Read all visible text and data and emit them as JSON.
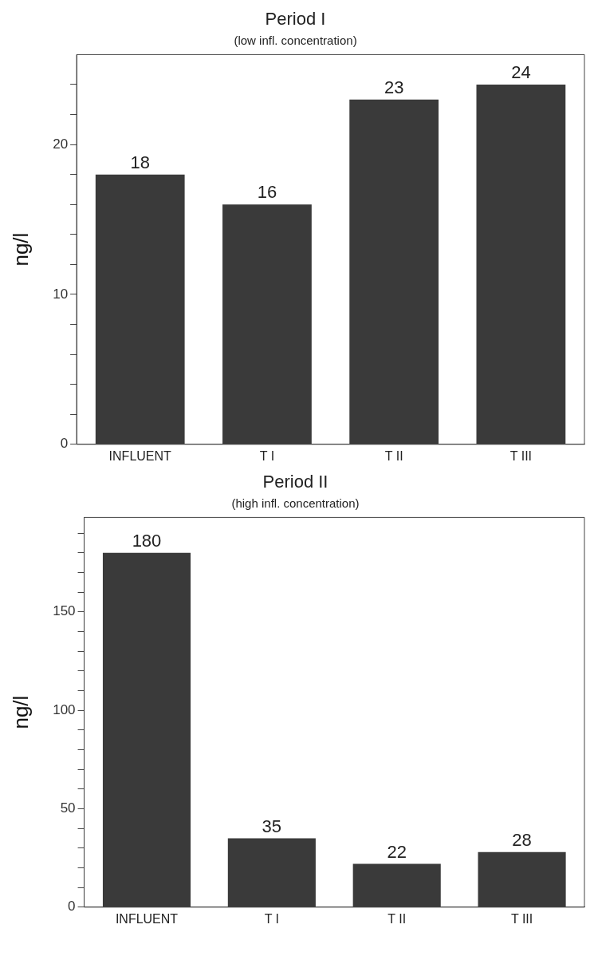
{
  "chart_data": [
    {
      "type": "bar",
      "title": "Period I",
      "subtitle": "(low infl. concentration)",
      "ylabel": "ng/l",
      "categories": [
        "INFLUENT",
        "T I",
        "T II",
        "T III"
      ],
      "values": [
        18,
        16,
        23,
        24
      ],
      "color": "#3a3a3a",
      "ylim": [
        0,
        26
      ],
      "yticks": [
        0,
        {
          "value": 2,
          "label": null
        },
        {
          "value": 4,
          "label": null
        },
        {
          "value": 6,
          "label": null
        },
        {
          "value": 8,
          "label": null
        },
        10,
        {
          "value": 12,
          "label": null
        },
        {
          "value": 14,
          "label": null
        },
        {
          "value": 16,
          "label": null
        },
        {
          "value": 18,
          "label": null
        },
        20,
        {
          "value": 22,
          "label": null
        },
        {
          "value": 24,
          "label": null
        }
      ],
      "data_labels": true,
      "grid": false,
      "legend": false
    },
    {
      "type": "bar",
      "title": "Period II",
      "subtitle": "(high infl. concentration)",
      "ylabel": "ng/l",
      "categories": [
        "INFLUENT",
        "T I",
        "T II",
        "T III"
      ],
      "values": [
        180,
        35,
        22,
        28
      ],
      "color": "#3a3a3a",
      "ylim": [
        0,
        198
      ],
      "yticks": [
        0,
        {
          "value": 10,
          "label": null
        },
        {
          "value": 20,
          "label": null
        },
        {
          "value": 30,
          "label": null
        },
        {
          "value": 40,
          "label": null
        },
        50,
        {
          "value": 60,
          "label": null
        },
        {
          "value": 70,
          "label": null
        },
        {
          "value": 80,
          "label": null
        },
        {
          "value": 90,
          "label": null
        },
        100,
        {
          "value": 110,
          "label": null
        },
        {
          "value": 120,
          "label": null
        },
        {
          "value": 130,
          "label": null
        },
        {
          "value": 140,
          "label": null
        },
        150,
        {
          "value": 160,
          "label": null
        },
        {
          "value": 170,
          "label": null
        },
        {
          "value": 180,
          "label": null
        },
        {
          "value": 190,
          "label": null
        }
      ],
      "data_labels": true,
      "grid": false,
      "legend": false
    }
  ]
}
